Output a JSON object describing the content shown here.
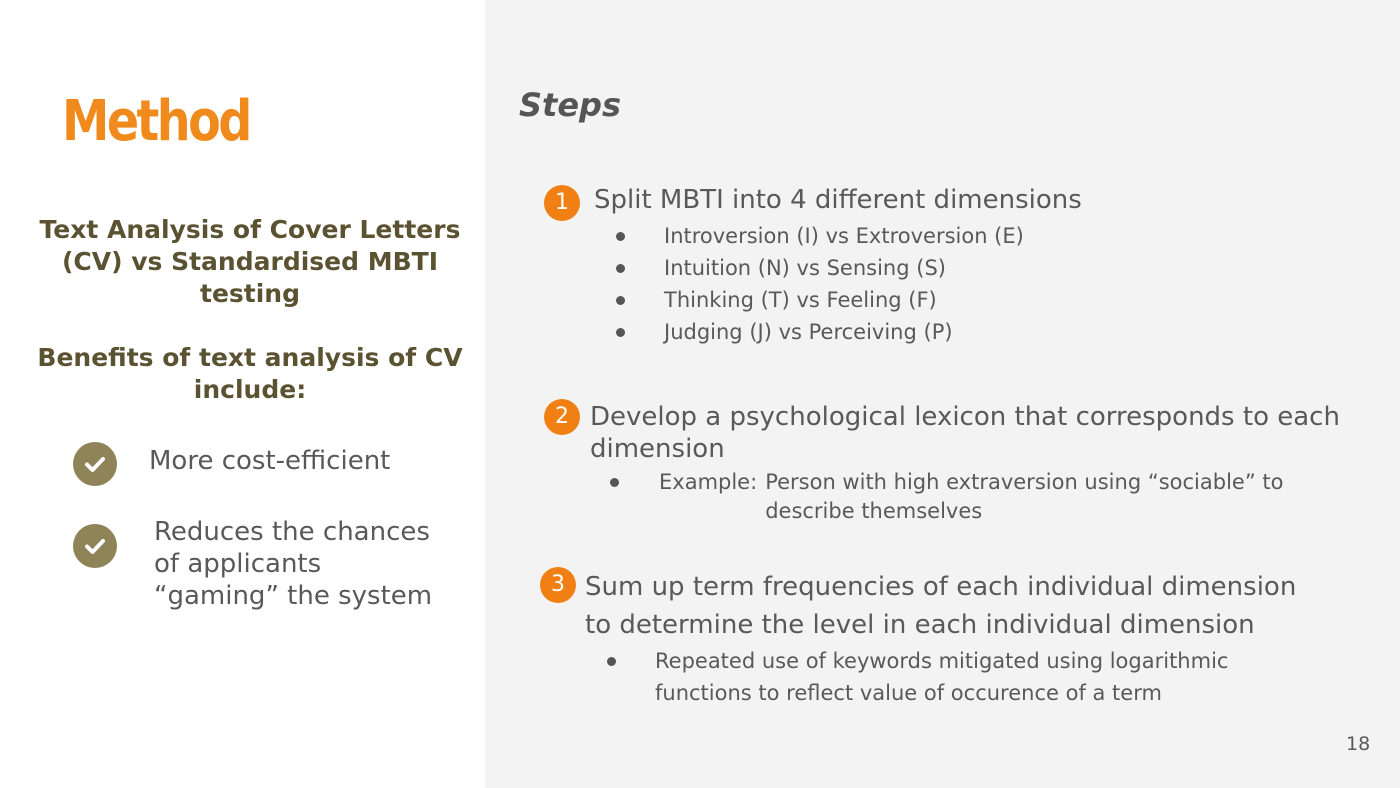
{
  "title": "Method",
  "subtitle_1": "Text Analysis of Cover Letters (CV) vs Standardised MBTI testing",
  "subtitle_2": "Benefits of text analysis of CV include:",
  "benefits": [
    "More cost-efficient",
    "Reduces the chances of applicants “gaming” the system"
  ],
  "steps_heading": "Steps",
  "steps": [
    {
      "number": "1",
      "text": "Split MBTI into 4 different dimensions",
      "bullets": [
        "Introversion (I) vs Extroversion (E)",
        "Intuition (N) vs Sensing (S)",
        "Thinking (T) vs Feeling (F)",
        "Judging (J) vs Perceiving (P)"
      ]
    },
    {
      "number": "2",
      "text": "Develop a psychological lexicon that corresponds to each dimension",
      "example_label": "Example:",
      "example_text": "Person with high extraversion using “sociable” to describe themselves"
    },
    {
      "number": "3",
      "text": "Sum up term frequencies of each individual dimension to determine the level in each individual dimension",
      "bullets": [
        "Repeated use of keywords mitigated using logarithmic functions to reflect value of occurence of a term"
      ]
    }
  ],
  "page_number": "18",
  "colors": {
    "accent_orange": "#f08a1c",
    "step_badge": "#f07f14",
    "subtitle_text": "#5b5232",
    "check_badge": "#8f8358",
    "body_text": "#595959",
    "right_panel_bg": "#f3f3f3"
  },
  "icons": {
    "benefit_marker": "check-circle-icon"
  }
}
